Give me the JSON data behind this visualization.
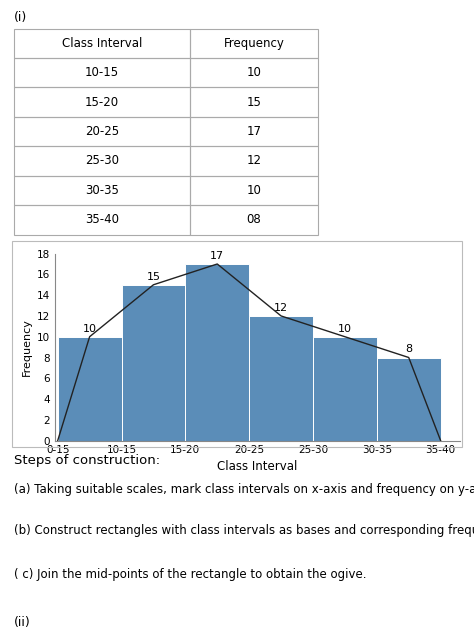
{
  "title_label": "(i)",
  "table_headers": [
    "Class Interval",
    "Frequency"
  ],
  "table_rows": [
    [
      "10-15",
      "10"
    ],
    [
      "15-20",
      "15"
    ],
    [
      "20-25",
      "17"
    ],
    [
      "25-30",
      "12"
    ],
    [
      "30-35",
      "10"
    ],
    [
      "35-40",
      "08"
    ]
  ],
  "frequencies": [
    10,
    15,
    17,
    12,
    10,
    8
  ],
  "freq_labels": [
    "10",
    "15",
    "17",
    "12",
    "10",
    "8"
  ],
  "bar_color": "#5b8db8",
  "bar_edgecolor": "#ffffff",
  "polygon_color": "#222222",
  "xlabel": "Class Interval",
  "ylabel": "Frequency",
  "ylim": [
    0,
    18
  ],
  "yticks": [
    0,
    2,
    4,
    6,
    8,
    10,
    12,
    14,
    16,
    18
  ],
  "xtick_labels": [
    "0-15",
    "10-15",
    "15-20",
    "20-25",
    "25-30",
    "30-35",
    "35-40"
  ],
  "steps_title": "Steps of construction:",
  "step_a": "(a) Taking suitable scales, mark class intervals on x-axis and frequency on y-axis.",
  "step_b": "(b) Construct rectangles with class intervals as bases and corresponding frequencies as heights.",
  "step_c": "( c) Join the mid-points of the rectangle to obtain the ogive.",
  "label_ii": "(ii)",
  "bg_color": "#ffffff",
  "text_color": "#000000",
  "table_border_color": "#aaaaaa",
  "chart_border_color": "#bbbbbb"
}
